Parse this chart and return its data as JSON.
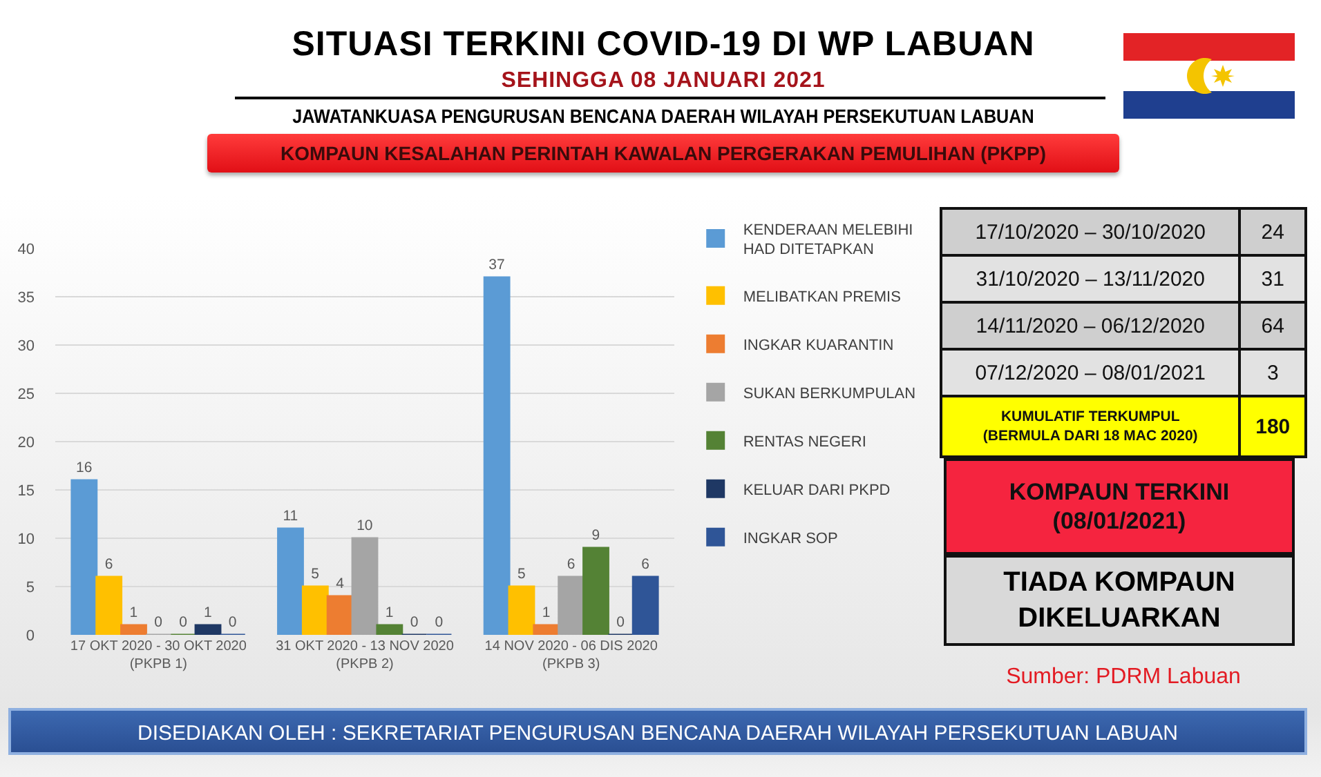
{
  "chart_data": [
    {
      "type": "bar",
      "title": "SITUASI TERKINI COVID-19 DI WP LABUAN",
      "subtitle": "SEHINGGA 08 JANUARI 2021",
      "annotations": [
        "JAWATANKUASA PENGURUSAN BENCANA DAERAH WILAYAH PERSEKUTUAN LABUAN",
        "KOMPAUN KESALAHAN PERINTAH KAWALAN PERGERAKAN PEMULIHAN (PKPP)",
        "DISEDIAKAN OLEH : SEKRETARIAT PENGURUSAN BENCANA DAERAH WILAYAH PERSEKUTUAN LABUAN"
      ],
      "categories": [
        "17 OKT 2020 - 30 OKT 2020\n(PKPB 1)",
        "31 OKT 2020 - 13 NOV 2020\n(PKPB 2)",
        "14 NOV 2020 - 06 DIS 2020\n(PKPB 3)"
      ],
      "series": [
        {
          "name": "KENDERAAN MELEBIHI\nHAD DITETAPKAN",
          "color": "#5b9bd5",
          "values": [
            16,
            11,
            37
          ]
        },
        {
          "name": "MELIBATKAN PREMIS",
          "color": "#ffc000",
          "values": [
            6,
            5,
            5
          ]
        },
        {
          "name": "INGKAR KUARANTIN",
          "color": "#ed7d31",
          "values": [
            1,
            4,
            1
          ]
        },
        {
          "name": "SUKAN BERKUMPULAN",
          "color": "#a5a5a5",
          "values": [
            0,
            10,
            6
          ]
        },
        {
          "name": "RENTAS NEGERI",
          "color": "#548235",
          "values": [
            0,
            1,
            9
          ]
        },
        {
          "name": "KELUAR DARI PKPD",
          "color": "#1f3864",
          "values": [
            1,
            0,
            0
          ]
        },
        {
          "name": "INGKAR SOP",
          "color": "#2f5597",
          "values": [
            0,
            0,
            6
          ]
        }
      ],
      "ylim": [
        0,
        40
      ],
      "yticks": [
        0,
        5,
        10,
        15,
        20,
        25,
        30,
        35,
        40
      ],
      "grid": "y",
      "legend": "right",
      "data_labels": true
    },
    {
      "type": "other",
      "categories": [
        "17/10/2020 – 30/10/2020",
        "31/10/2020 – 13/11/2020",
        "14/11/2020 – 06/12/2020",
        "07/12/2020 – 08/01/2021",
        "KUMULATIF TERKUMPUL\n(BERMULA DARI 18 MAC 2020)"
      ],
      "values": [
        24,
        31,
        64,
        3,
        180
      ],
      "data_labels": true,
      "annotations": [
        "KOMPAUN TERKINI\n(08/01/2021)",
        "TIADA KOMPAUN\nDIKELUARKAN",
        "Sumber: PDRM Labuan"
      ]
    }
  ]
}
